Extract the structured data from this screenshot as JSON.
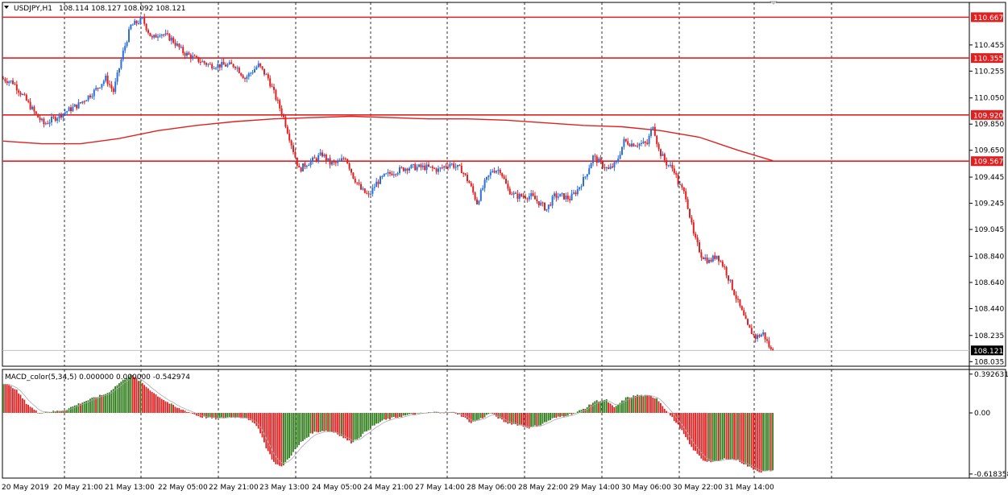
{
  "header": {
    "symbol": "USDJPY,H1",
    "ohlc": "108.114 108.127 108.092 108.121"
  },
  "indicator": {
    "label": "MACD_color(5,34,5) 0.000000 0.000000 -0.542974",
    "ticks": [
      {
        "label": "0.392631",
        "value": 0.392631
      },
      {
        "label": "0.00",
        "value": 0.0
      },
      {
        "label": "-0.618358",
        "value": -0.618358
      }
    ]
  },
  "colors": {
    "bull": "#2a6fdb",
    "bear": "#e02020",
    "level_line": "#e02020",
    "ma": "#e02020",
    "hist_up": "#2e7d1a",
    "hist_down": "#e02020",
    "signal": "#aaaaaa",
    "grid": "#000000"
  },
  "chart_data": {
    "type": "candlestick",
    "symbol": "USDJPY",
    "timeframe": "H1",
    "ylim": [
      108.0,
      110.78
    ],
    "price_ticks": [
      "110.455",
      "110.255",
      "110.050",
      "109.850",
      "109.650",
      "109.445",
      "109.245",
      "109.045",
      "108.840",
      "108.640",
      "108.440",
      "108.235",
      "108.035"
    ],
    "time_labels": [
      "20 May 2019",
      "20 May 21:00",
      "21 May 13:00",
      "22 May 05:00",
      "22 May 21:00",
      "23 May 13:00",
      "24 May 05:00",
      "24 May 21:00",
      "27 May 14:00",
      "28 May 06:00",
      "28 May 22:00",
      "29 May 14:00",
      "30 May 06:00",
      "30 May 22:00",
      "31 May 14:00"
    ],
    "levels": [
      {
        "label": "110.667",
        "value": 110.667
      },
      {
        "label": "110.355",
        "value": 110.355
      },
      {
        "label": "109.920",
        "value": 109.92
      },
      {
        "label": "109.567",
        "value": 109.567
      }
    ],
    "current_price": {
      "label": "108.121",
      "value": 108.121
    },
    "close_path": [
      [
        0,
        110.2
      ],
      [
        6,
        110.17
      ],
      [
        12,
        110.05
      ],
      [
        18,
        109.92
      ],
      [
        22,
        109.85
      ],
      [
        28,
        109.9
      ],
      [
        34,
        109.95
      ],
      [
        40,
        110.0
      ],
      [
        48,
        110.1
      ],
      [
        54,
        110.2
      ],
      [
        58,
        110.1
      ],
      [
        63,
        110.4
      ],
      [
        67,
        110.6
      ],
      [
        73,
        110.65
      ],
      [
        78,
        110.5
      ],
      [
        82,
        110.55
      ],
      [
        88,
        110.5
      ],
      [
        94,
        110.4
      ],
      [
        100,
        110.35
      ],
      [
        108,
        110.3
      ],
      [
        115,
        110.3
      ],
      [
        121,
        110.3
      ],
      [
        126,
        110.2
      ],
      [
        133,
        110.3
      ],
      [
        138,
        110.2
      ],
      [
        142,
        110.05
      ],
      [
        146,
        109.9
      ],
      [
        150,
        109.7
      ],
      [
        154,
        109.5
      ],
      [
        158,
        109.55
      ],
      [
        162,
        109.58
      ],
      [
        166,
        109.62
      ],
      [
        170,
        109.55
      ],
      [
        174,
        109.55
      ],
      [
        178,
        109.6
      ],
      [
        182,
        109.45
      ],
      [
        186,
        109.35
      ],
      [
        190,
        109.3
      ],
      [
        194,
        109.4
      ],
      [
        198,
        109.45
      ],
      [
        202,
        109.48
      ],
      [
        206,
        109.5
      ],
      [
        210,
        109.52
      ],
      [
        214,
        109.52
      ],
      [
        220,
        109.52
      ],
      [
        226,
        109.5
      ],
      [
        232,
        109.55
      ],
      [
        238,
        109.5
      ],
      [
        242,
        109.4
      ],
      [
        246,
        109.25
      ],
      [
        250,
        109.4
      ],
      [
        254,
        109.5
      ],
      [
        258,
        109.5
      ],
      [
        262,
        109.35
      ],
      [
        266,
        109.3
      ],
      [
        270,
        109.3
      ],
      [
        274,
        109.3
      ],
      [
        278,
        109.25
      ],
      [
        282,
        109.2
      ],
      [
        286,
        109.3
      ],
      [
        290,
        109.3
      ],
      [
        294,
        109.28
      ],
      [
        298,
        109.35
      ],
      [
        302,
        109.45
      ],
      [
        306,
        109.6
      ],
      [
        310,
        109.55
      ],
      [
        314,
        109.5
      ],
      [
        318,
        109.55
      ],
      [
        322,
        109.72
      ],
      [
        326,
        109.7
      ],
      [
        330,
        109.7
      ],
      [
        334,
        109.7
      ],
      [
        337,
        109.85
      ],
      [
        340,
        109.65
      ],
      [
        344,
        109.55
      ],
      [
        348,
        109.5
      ],
      [
        350,
        109.4
      ],
      [
        354,
        109.3
      ],
      [
        358,
        109.0
      ],
      [
        362,
        108.85
      ],
      [
        366,
        108.8
      ],
      [
        370,
        108.85
      ],
      [
        374,
        108.75
      ],
      [
        378,
        108.6
      ],
      [
        382,
        108.45
      ],
      [
        386,
        108.3
      ],
      [
        390,
        108.22
      ],
      [
        394,
        108.25
      ],
      [
        398,
        108.121
      ]
    ],
    "moving_average": [
      [
        0,
        109.72
      ],
      [
        20,
        109.7
      ],
      [
        40,
        109.7
      ],
      [
        60,
        109.74
      ],
      [
        80,
        109.8
      ],
      [
        100,
        109.84
      ],
      [
        120,
        109.87
      ],
      [
        140,
        109.89
      ],
      [
        160,
        109.9
      ],
      [
        180,
        109.91
      ],
      [
        200,
        109.9
      ],
      [
        220,
        109.89
      ],
      [
        240,
        109.89
      ],
      [
        260,
        109.88
      ],
      [
        280,
        109.86
      ],
      [
        300,
        109.84
      ],
      [
        320,
        109.83
      ],
      [
        340,
        109.8
      ],
      [
        360,
        109.75
      ],
      [
        380,
        109.65
      ],
      [
        398,
        109.57
      ]
    ],
    "macd_path": [
      [
        0,
        0.3
      ],
      [
        6,
        0.25
      ],
      [
        12,
        0.1
      ],
      [
        18,
        0.0
      ],
      [
        24,
        0.01
      ],
      [
        32,
        0.03
      ],
      [
        40,
        0.1
      ],
      [
        48,
        0.16
      ],
      [
        54,
        0.2
      ],
      [
        60,
        0.3
      ],
      [
        66,
        0.39
      ],
      [
        72,
        0.3
      ],
      [
        78,
        0.2
      ],
      [
        84,
        0.12
      ],
      [
        90,
        0.05
      ],
      [
        96,
        0.01
      ],
      [
        102,
        -0.04
      ],
      [
        110,
        -0.06
      ],
      [
        118,
        -0.04
      ],
      [
        126,
        -0.05
      ],
      [
        132,
        -0.15
      ],
      [
        136,
        -0.35
      ],
      [
        140,
        -0.5
      ],
      [
        144,
        -0.55
      ],
      [
        148,
        -0.45
      ],
      [
        154,
        -0.3
      ],
      [
        160,
        -0.2
      ],
      [
        166,
        -0.18
      ],
      [
        172,
        -0.2
      ],
      [
        176,
        -0.25
      ],
      [
        180,
        -0.3
      ],
      [
        184,
        -0.25
      ],
      [
        190,
        -0.15
      ],
      [
        196,
        -0.08
      ],
      [
        202,
        -0.05
      ],
      [
        210,
        -0.02
      ],
      [
        218,
        0.0
      ],
      [
        226,
        0.01
      ],
      [
        234,
        0.0
      ],
      [
        238,
        -0.04
      ],
      [
        242,
        -0.1
      ],
      [
        248,
        -0.05
      ],
      [
        252,
        0.0
      ],
      [
        256,
        -0.05
      ],
      [
        260,
        -0.1
      ],
      [
        266,
        -0.12
      ],
      [
        272,
        -0.15
      ],
      [
        278,
        -0.12
      ],
      [
        284,
        -0.06
      ],
      [
        290,
        -0.03
      ],
      [
        296,
        0.0
      ],
      [
        302,
        0.06
      ],
      [
        306,
        0.12
      ],
      [
        312,
        0.13
      ],
      [
        316,
        0.05
      ],
      [
        322,
        0.15
      ],
      [
        328,
        0.18
      ],
      [
        334,
        0.17
      ],
      [
        338,
        0.15
      ],
      [
        342,
        0.05
      ],
      [
        346,
        -0.05
      ],
      [
        350,
        -0.15
      ],
      [
        356,
        -0.35
      ],
      [
        362,
        -0.48
      ],
      [
        368,
        -0.5
      ],
      [
        374,
        -0.46
      ],
      [
        380,
        -0.48
      ],
      [
        386,
        -0.55
      ],
      [
        392,
        -0.6
      ],
      [
        398,
        -0.58
      ]
    ]
  }
}
